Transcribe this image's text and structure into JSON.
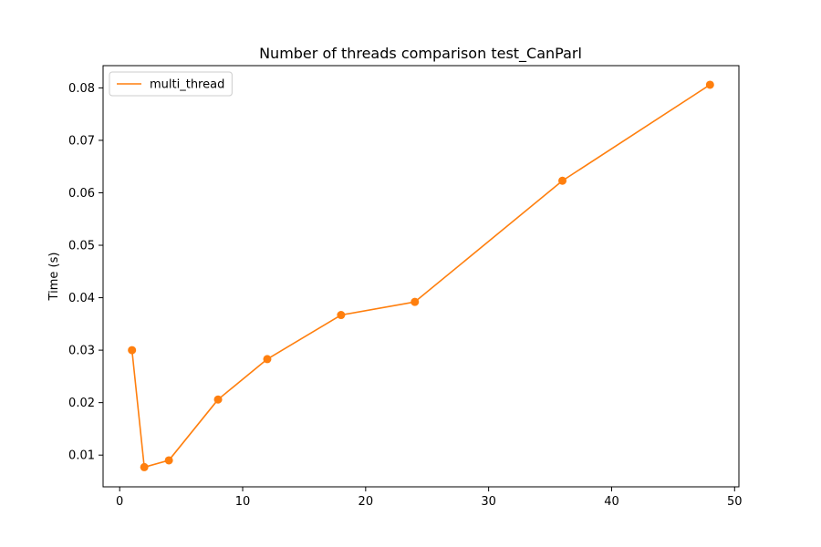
{
  "chart_data": {
    "type": "line",
    "title": "Number of threads comparison test_CanParl",
    "xlabel": "",
    "ylabel": "Time (s)",
    "xlim": [
      -1.35,
      50.35
    ],
    "ylim": [
      0.00395,
      0.08424
    ],
    "xticks": [
      0,
      10,
      20,
      30,
      40,
      50
    ],
    "yticks": [
      0.01,
      0.02,
      0.03,
      0.04,
      0.05,
      0.06,
      0.07,
      0.08
    ],
    "xtick_labels": [
      "0",
      "10",
      "20",
      "30",
      "40",
      "50"
    ],
    "ytick_labels": [
      "0.01",
      "0.02",
      "0.03",
      "0.04",
      "0.05",
      "0.06",
      "0.07",
      "0.08"
    ],
    "grid": false,
    "legend_position": "top-left",
    "series": [
      {
        "name": "multi_thread",
        "color": "#ff7f0e",
        "marker": "circle",
        "x": [
          1,
          2,
          4,
          8,
          12,
          18,
          24,
          36,
          48
        ],
        "y": [
          0.03,
          0.0077,
          0.009,
          0.0206,
          0.0283,
          0.0367,
          0.0392,
          0.0623,
          0.0806
        ]
      }
    ]
  }
}
